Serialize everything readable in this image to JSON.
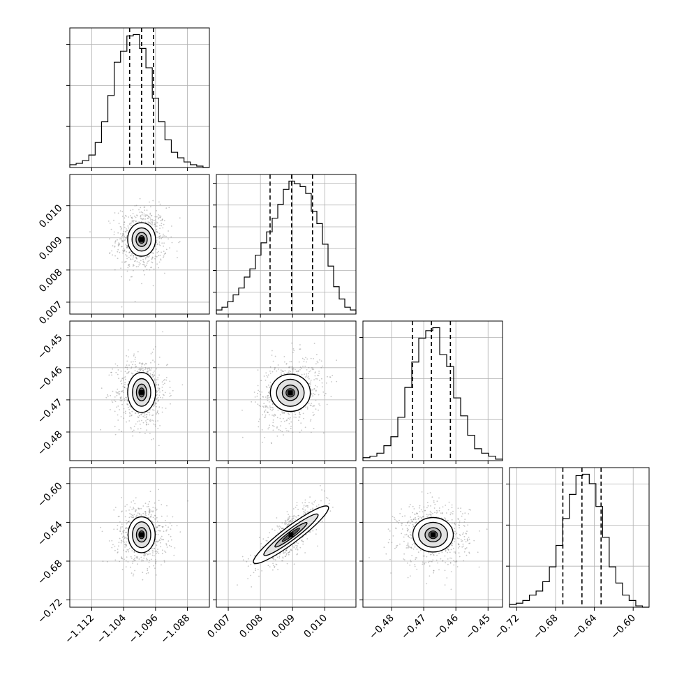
{
  "chart_data": {
    "type": "corner",
    "colors": {
      "line": "#000000",
      "grid": "#b0b0b0",
      "scatter": "#808080"
    },
    "grid": true,
    "parameters": [
      {
        "index": 0,
        "range": [
          -1.1175,
          -1.0825
        ],
        "ticks": [
          -1.112,
          -1.104,
          -1.096,
          -1.088
        ],
        "tick_labels": [
          "−1.112",
          "−1.104",
          "−1.096",
          "−1.088"
        ],
        "quantiles": [
          -1.1025,
          -1.0995,
          -1.0965
        ]
      },
      {
        "index": 1,
        "range": [
          0.00663,
          0.01097
        ],
        "ticks": [
          0.007,
          0.008,
          0.009,
          0.01
        ],
        "tick_labels": [
          "0.007",
          "0.008",
          "0.009",
          "0.010"
        ],
        "quantiles": [
          0.0083,
          0.00897,
          0.00962
        ]
      },
      {
        "index": 2,
        "range": [
          -0.4889,
          -0.4455
        ],
        "ticks": [
          -0.48,
          -0.47,
          -0.46,
          -0.45
        ],
        "tick_labels": [
          "−0.48",
          "−0.47",
          "−0.46",
          "−0.45"
        ],
        "quantiles": [
          -0.4735,
          -0.4676,
          -0.4617
        ]
      },
      {
        "index": 3,
        "range": [
          -0.7275,
          -0.5836
        ],
        "ticks": [
          -0.72,
          -0.68,
          -0.64,
          -0.6
        ],
        "tick_labels": [
          "−0.72",
          "−0.68",
          "−0.64",
          "−0.60"
        ],
        "quantiles": [
          -0.6725,
          -0.6528,
          -0.6331
        ]
      }
    ],
    "histograms": [
      {
        "param": 0,
        "counts": [
          2,
          3,
          5,
          9,
          18,
          33,
          52,
          76,
          84,
          95,
          96,
          86,
          72,
          50,
          33,
          20,
          11,
          7,
          4,
          2,
          1,
          0
        ]
      },
      {
        "param": 1,
        "counts": [
          3,
          5,
          9,
          14,
          19,
          27,
          33,
          43,
          52,
          60,
          70,
          80,
          91,
          97,
          95,
          93,
          88,
          75,
          66,
          51,
          35,
          20,
          11,
          5,
          3
        ]
      },
      {
        "param": 2,
        "counts": [
          2,
          3,
          5,
          10,
          16,
          29,
          49,
          66,
          82,
          87,
          89,
          71,
          63,
          42,
          30,
          17,
          8,
          5,
          3,
          1
        ]
      },
      {
        "param": 3,
        "counts": [
          2,
          3,
          5,
          9,
          12,
          19,
          30,
          46,
          66,
          84,
          98,
          99,
          92,
          75,
          52,
          30,
          18,
          9,
          5,
          1,
          0
        ]
      }
    ],
    "scatter_sigma": [
      0.0032,
      0.0005,
      0.0055,
      0.016
    ],
    "scatter_correlations": {
      "1-2": 0.25,
      "1-3": 0.8
    },
    "contours": [
      {
        "x": 0,
        "y": 1,
        "center": [
          -1.0995,
          0.00895
        ],
        "levels": [
          [
            0.0035,
            0.00052
          ],
          [
            0.0024,
            0.00036
          ],
          [
            0.0014,
            0.00022
          ]
        ]
      },
      {
        "x": 0,
        "y": 2,
        "center": [
          -1.0995,
          -0.4677
        ],
        "levels": [
          [
            0.0035,
            0.0062
          ],
          [
            0.0023,
            0.0043
          ],
          [
            0.0013,
            0.0026
          ]
        ]
      },
      {
        "x": 1,
        "y": 2,
        "center": [
          0.00893,
          -0.4678
        ],
        "levels": [
          [
            0.00062,
            0.0058
          ],
          [
            0.00043,
            0.0042
          ],
          [
            0.00025,
            0.0024
          ]
        ]
      },
      {
        "x": 0,
        "y": 3,
        "center": [
          -1.0995,
          -0.6528
        ],
        "levels": [
          [
            0.0034,
            0.0185
          ],
          [
            0.0023,
            0.0133
          ],
          [
            0.0013,
            0.0075
          ]
        ]
      },
      {
        "x": 1,
        "y": 3,
        "center": [
          0.00895,
          -0.6528
        ],
        "rotation_deg": 37,
        "levels": [
          [
            0.00145,
            0.0085
          ],
          [
            0.00105,
            0.0055
          ],
          [
            0.00062,
            0.0032
          ]
        ]
      },
      {
        "x": 2,
        "y": 3,
        "center": [
          -0.4671,
          -0.6528
        ],
        "levels": [
          [
            0.0063,
            0.0178
          ],
          [
            0.0045,
            0.0128
          ],
          [
            0.0025,
            0.0073
          ]
        ]
      }
    ]
  }
}
